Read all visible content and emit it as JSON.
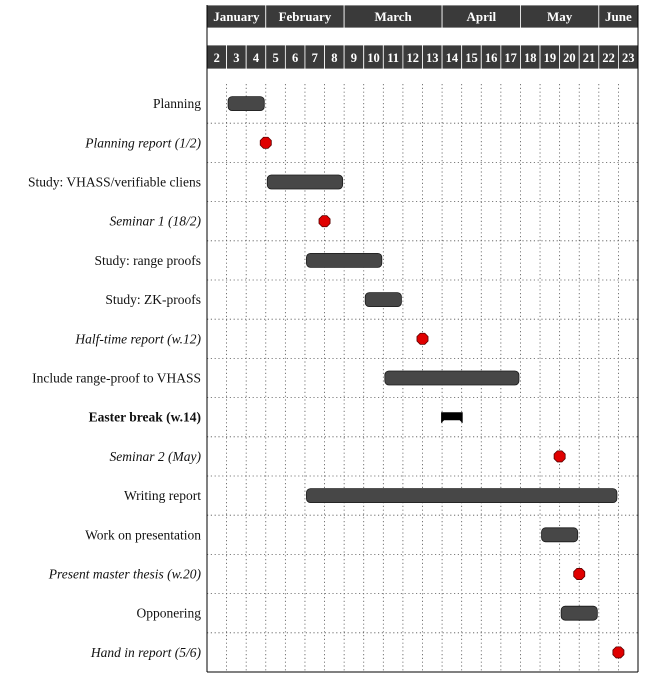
{
  "colors": {
    "header_bg": "#3a3a3a",
    "bar_fill": "#474747",
    "milestone_fill": "#e00000",
    "break_fill": "#000000"
  },
  "months": [
    {
      "label": "January",
      "start": 2,
      "end": 4
    },
    {
      "label": "February",
      "start": 5,
      "end": 8
    },
    {
      "label": "March",
      "start": 9,
      "end": 13
    },
    {
      "label": "April",
      "start": 14,
      "end": 17
    },
    {
      "label": "May",
      "start": 18,
      "end": 21
    },
    {
      "label": "June",
      "start": 22,
      "end": 23
    }
  ],
  "weeks": [
    2,
    3,
    4,
    5,
    6,
    7,
    8,
    9,
    10,
    11,
    12,
    13,
    14,
    15,
    16,
    17,
    18,
    19,
    20,
    21,
    22,
    23
  ],
  "tasks": [
    {
      "label": "Planning",
      "kind": "bar",
      "start": 3,
      "end": 4
    },
    {
      "label": "Planning report (1/2)",
      "kind": "milestone",
      "start": 4,
      "end": 4
    },
    {
      "label": "Study: VHASS/verifiable cliens",
      "kind": "bar",
      "start": 5,
      "end": 8
    },
    {
      "label": "Seminar 1 (18/2)",
      "kind": "milestone",
      "start": 7,
      "end": 7
    },
    {
      "label": "Study: range proofs",
      "kind": "bar",
      "start": 7,
      "end": 10
    },
    {
      "label": "Study: ZK-proofs",
      "kind": "bar",
      "start": 10,
      "end": 11
    },
    {
      "label": "Half-time report (w.12)",
      "kind": "milestone",
      "start": 12,
      "end": 12
    },
    {
      "label": "Include range-proof to VHASS",
      "kind": "bar",
      "start": 11,
      "end": 17
    },
    {
      "label": "Easter break (w.14)",
      "kind": "break",
      "start": 14,
      "end": 14
    },
    {
      "label": "Seminar 2 (May)",
      "kind": "milestone",
      "start": 19,
      "end": 19
    },
    {
      "label": "Writing report",
      "kind": "bar",
      "start": 7,
      "end": 22
    },
    {
      "label": "Work on presentation",
      "kind": "bar",
      "start": 19,
      "end": 20
    },
    {
      "label": "Present master thesis (w.20)",
      "kind": "milestone",
      "start": 20,
      "end": 20
    },
    {
      "label": "Opponering",
      "kind": "bar",
      "start": 20,
      "end": 21
    },
    {
      "label": "Hand in report (5/6)",
      "kind": "milestone",
      "start": 22,
      "end": 22
    }
  ]
}
